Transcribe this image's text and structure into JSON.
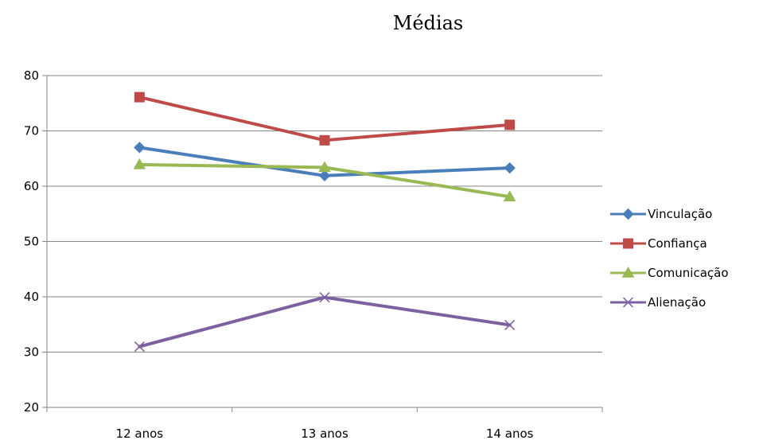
{
  "chart_data": {
    "type": "line",
    "title": "Médias",
    "xlabel": "",
    "ylabel": "",
    "categories": [
      "12 anos",
      "13 anos",
      "14 anos"
    ],
    "ylim": [
      20,
      80
    ],
    "yticks": [
      20,
      30,
      40,
      50,
      60,
      70,
      80
    ],
    "grid": true,
    "legend_position": "right",
    "series": [
      {
        "name": "Vinculação",
        "values": [
          67,
          61.9,
          63.3
        ],
        "color": "#4a7ebb",
        "marker": "diamond"
      },
      {
        "name": "Confiança",
        "values": [
          76.1,
          68.3,
          71.1
        ],
        "color": "#be4b48",
        "marker": "square"
      },
      {
        "name": "Comunicação",
        "values": [
          63.9,
          63.4,
          58.1
        ],
        "color": "#98b954",
        "marker": "triangle"
      },
      {
        "name": "Alienação",
        "values": [
          31,
          39.9,
          34.9
        ],
        "color": "#7d60a0",
        "marker": "x"
      }
    ]
  }
}
